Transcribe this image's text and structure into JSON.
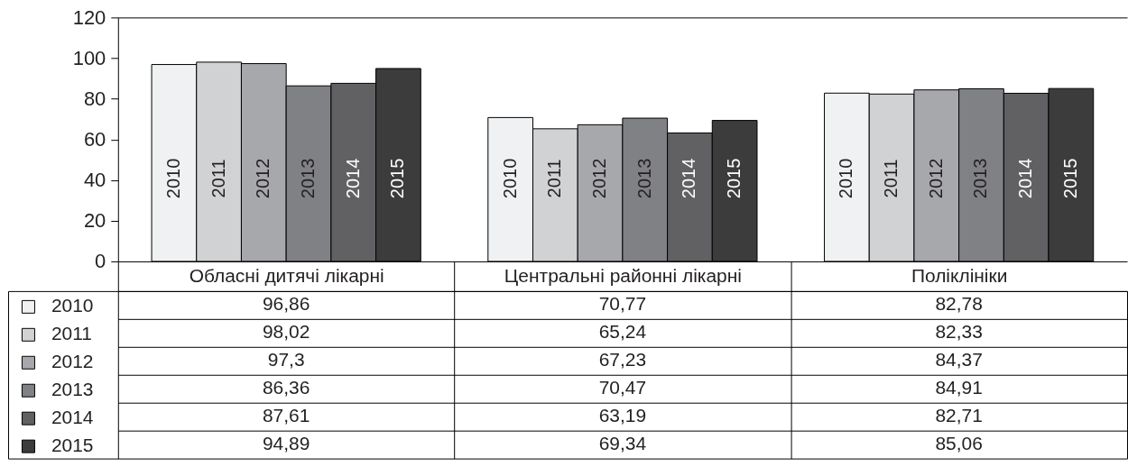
{
  "chart_data": {
    "type": "bar",
    "categories": [
      "Обласні дитячі лікарні",
      "Центральні районні лікарні",
      "Поліклініки"
    ],
    "series": [
      {
        "name": "2010",
        "color": "#f0f1f2",
        "values": [
          96.86,
          70.77,
          82.78
        ],
        "value_labels": [
          "96,86",
          "70,77",
          "82,78"
        ]
      },
      {
        "name": "2011",
        "color": "#d1d2d4",
        "values": [
          98.02,
          65.24,
          82.33
        ],
        "value_labels": [
          "98,02",
          "65,24",
          "82,33"
        ]
      },
      {
        "name": "2012",
        "color": "#a7a8ab",
        "values": [
          97.3,
          67.23,
          84.37
        ],
        "value_labels": [
          "97,3",
          "67,23",
          "84,37"
        ]
      },
      {
        "name": "2013",
        "color": "#808184",
        "values": [
          86.36,
          70.47,
          84.91
        ],
        "value_labels": [
          "86,36",
          "70,47",
          "84,91"
        ]
      },
      {
        "name": "2014",
        "color": "#616163",
        "values": [
          87.61,
          63.19,
          82.71
        ],
        "value_labels": [
          "87,61",
          "63,19",
          "82,71"
        ]
      },
      {
        "name": "2015",
        "color": "#3c3c3c",
        "values": [
          94.89,
          69.34,
          85.06
        ],
        "value_labels": [
          "94,89",
          "69,34",
          "85,06"
        ]
      }
    ],
    "ylim": [
      0,
      120
    ],
    "yticks": [
      0,
      20,
      40,
      60,
      80,
      100,
      120
    ],
    "grid": false,
    "legend": "bottom left"
  }
}
